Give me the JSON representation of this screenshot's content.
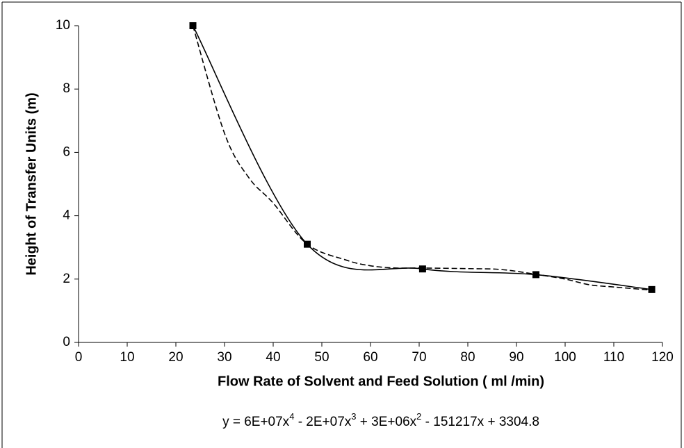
{
  "chart_data": {
    "type": "line",
    "x_label": "Flow Rate of Solvent and Feed Solution ( ml /min)",
    "y_label": "Height of Transfer Units (m)",
    "annotation_parts": [
      "y = 6E+07x",
      "4",
      " - 2E+07x",
      "3",
      " + 3E+06x",
      "2",
      " - 151217x + 3304.8"
    ],
    "xlim": [
      0,
      120
    ],
    "xticks": [
      0,
      10,
      20,
      30,
      40,
      50,
      60,
      70,
      80,
      90,
      100,
      110,
      120
    ],
    "ylim": [
      0,
      10
    ],
    "yticks": [
      0,
      2,
      4,
      6,
      8,
      10
    ],
    "grid": false,
    "series": [
      {
        "color": "#000000",
        "style": "solid",
        "marker": "square",
        "smooth": true,
        "x": [
          23.5,
          47,
          70.7,
          94,
          117.8
        ],
        "values": [
          10,
          3.1,
          2.32,
          2.14,
          1.67
        ]
      },
      {
        "color": "#000000",
        "style": "dashed",
        "marker": "none",
        "smooth": true,
        "x": [
          23.5,
          30,
          35,
          40,
          47,
          55,
          60,
          65,
          70,
          80,
          87,
          94,
          100,
          105,
          110,
          117.8
        ],
        "values": [
          10,
          6.6,
          5.2,
          4.4,
          3.1,
          2.6,
          2.42,
          2.35,
          2.35,
          2.33,
          2.3,
          2.15,
          2.0,
          1.82,
          1.75,
          1.65
        ]
      }
    ]
  }
}
